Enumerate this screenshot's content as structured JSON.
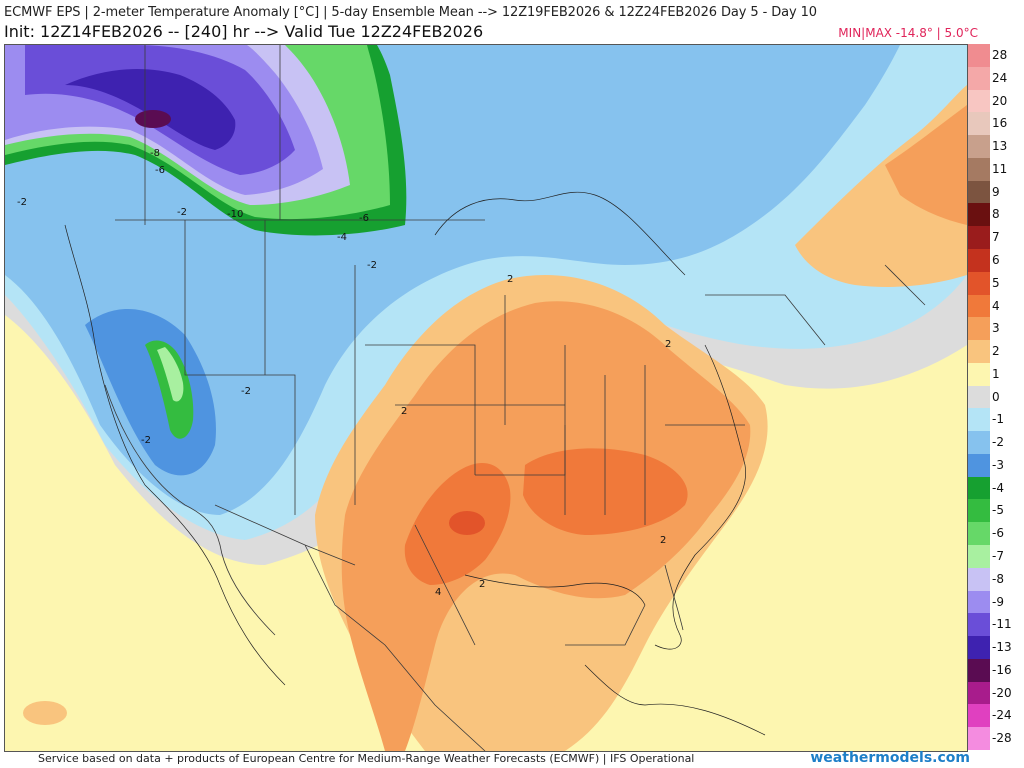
{
  "header": {
    "title": "ECMWF EPS | 2-meter Temperature Anomaly [°C] | 5-day Ensemble Mean --> 12Z19FEB2026 & 12Z24FEB2026   Day 5 - Day 10",
    "subtitle": "Init: 12Z14FEB2026 -- [240] hr --> Valid Tue 12Z24FEB2026",
    "minmax": "MIN|MAX -14.8° | 5.0°C"
  },
  "legend": [
    {
      "label": "28",
      "color": "#f08c90"
    },
    {
      "label": "24",
      "color": "#f4a8a8"
    },
    {
      "label": "20",
      "color": "#f8c6c2"
    },
    {
      "label": "16",
      "color": "#e8c8bc"
    },
    {
      "label": "13",
      "color": "#c8a08c"
    },
    {
      "label": "11",
      "color": "#a57a62"
    },
    {
      "label": "9",
      "color": "#7c5440"
    },
    {
      "label": "8",
      "color": "#6a1010"
    },
    {
      "label": "7",
      "color": "#9a1c1c"
    },
    {
      "label": "6",
      "color": "#c4321e"
    },
    {
      "label": "5",
      "color": "#e2542a"
    },
    {
      "label": "4",
      "color": "#f0793a"
    },
    {
      "label": "3",
      "color": "#f59f5a"
    },
    {
      "label": "2",
      "color": "#f9c47e"
    },
    {
      "label": "1",
      "color": "#fdf6b0"
    },
    {
      "label": "0",
      "color": "#dcdcdc"
    },
    {
      "label": "-1",
      "color": "#b4e4f6"
    },
    {
      "label": "-2",
      "color": "#86c2ee"
    },
    {
      "label": "-3",
      "color": "#4f94e0"
    },
    {
      "label": "-4",
      "color": "#16a030"
    },
    {
      "label": "-5",
      "color": "#34bc40"
    },
    {
      "label": "-6",
      "color": "#66d868"
    },
    {
      "label": "-7",
      "color": "#a8f0a0"
    },
    {
      "label": "-8",
      "color": "#c8c2f4"
    },
    {
      "label": "-9",
      "color": "#9c8cf0"
    },
    {
      "label": "-11",
      "color": "#6a4ed8"
    },
    {
      "label": "-13",
      "color": "#3e22b0"
    },
    {
      "label": "-16",
      "color": "#5a0c52"
    },
    {
      "label": "-20",
      "color": "#a81c8c"
    },
    {
      "label": "-24",
      "color": "#e040c0"
    },
    {
      "label": "-28",
      "color": "#f48ce0"
    }
  ],
  "contour_labels": [
    "-8",
    "-6",
    "-2",
    "-2",
    "-10",
    "-6",
    "-4",
    "-2",
    "2",
    "2",
    "-2",
    "-2",
    "2",
    "2",
    "2",
    "4",
    "2"
  ],
  "footer": {
    "credit": "Service based on data + products of European Centre for Medium-Range Weather Forecasts (ECMWF) | IFS Operational",
    "site": "weathermodels.com"
  }
}
